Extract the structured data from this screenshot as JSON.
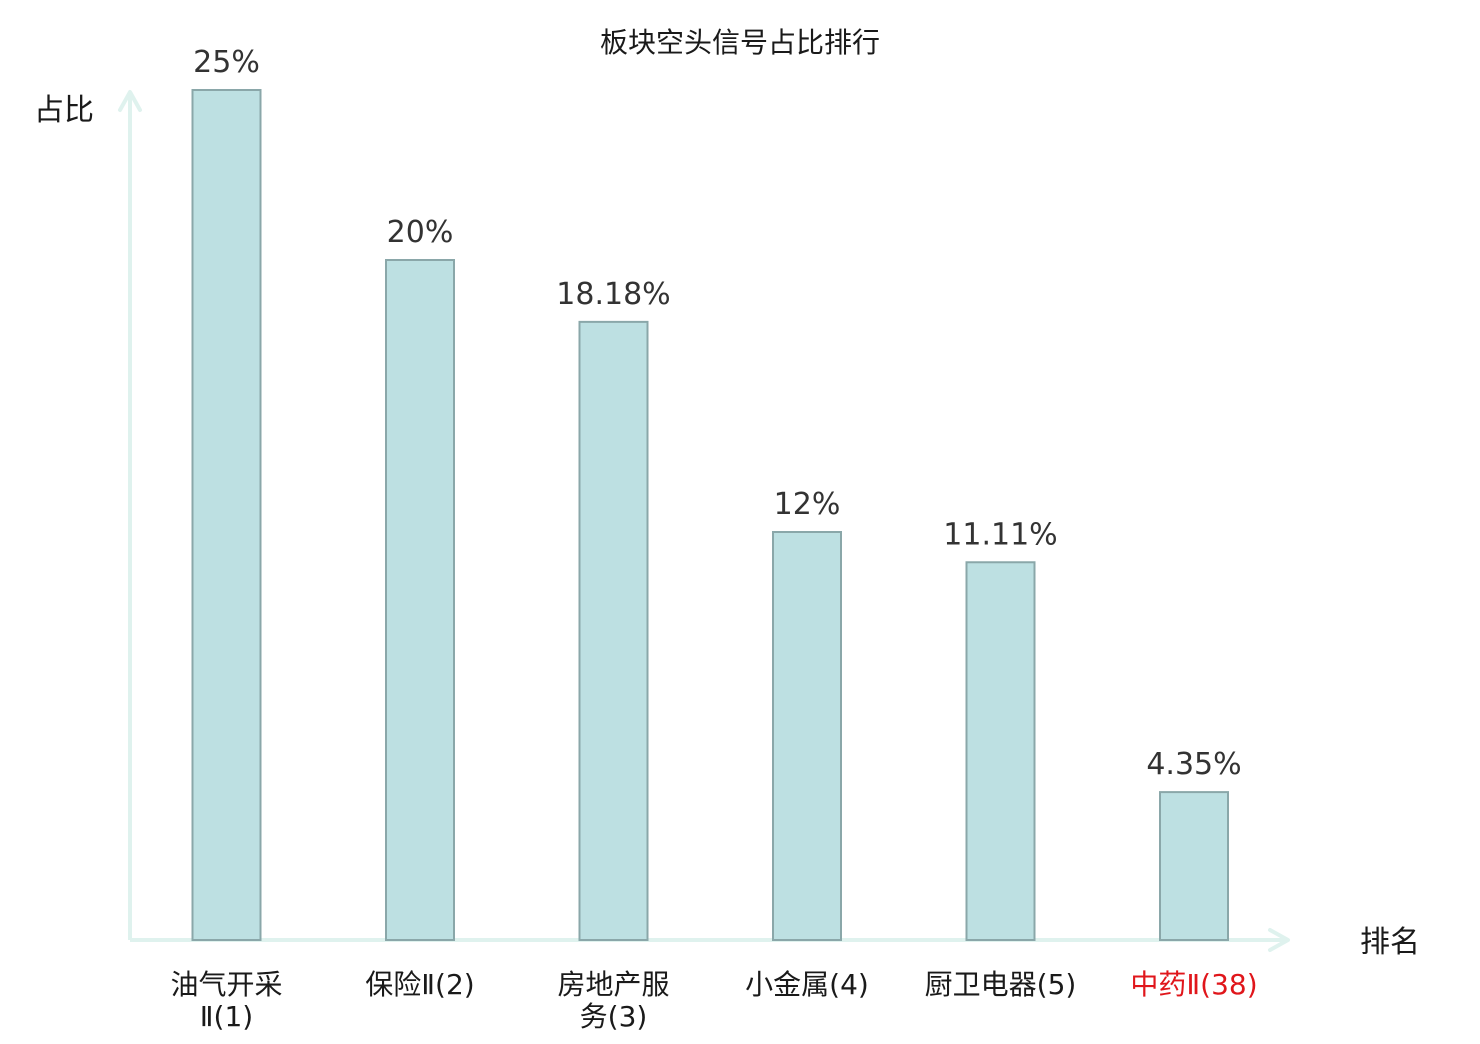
{
  "chart_data": {
    "type": "bar",
    "title": "板块空头信号占比排行",
    "ylabel": "占比",
    "xlabel": "排名",
    "categories": [
      [
        "油气开采",
        "Ⅱ(1)"
      ],
      [
        "保险Ⅱ(2)"
      ],
      [
        "房地产服",
        "务(3)"
      ],
      [
        "小金属(4)"
      ],
      [
        "厨卫电器(5)"
      ],
      [
        "中药Ⅱ(38)"
      ]
    ],
    "values": [
      25,
      20,
      18.18,
      12,
      11.11,
      4.35
    ],
    "value_labels": [
      "25%",
      "20%",
      "18.18%",
      "12%",
      "11.11%",
      "4.35%"
    ],
    "highlight_index": 5,
    "ylim": [
      0,
      25
    ],
    "grid": false,
    "legend": "none",
    "colors": {
      "bar_fill": "#bde0e2",
      "bar_stroke": "#8aa7a9",
      "axis": "#dff2ee",
      "text": "#1a1a1a",
      "value_text": "#333333",
      "highlight": "#e0161b"
    }
  }
}
